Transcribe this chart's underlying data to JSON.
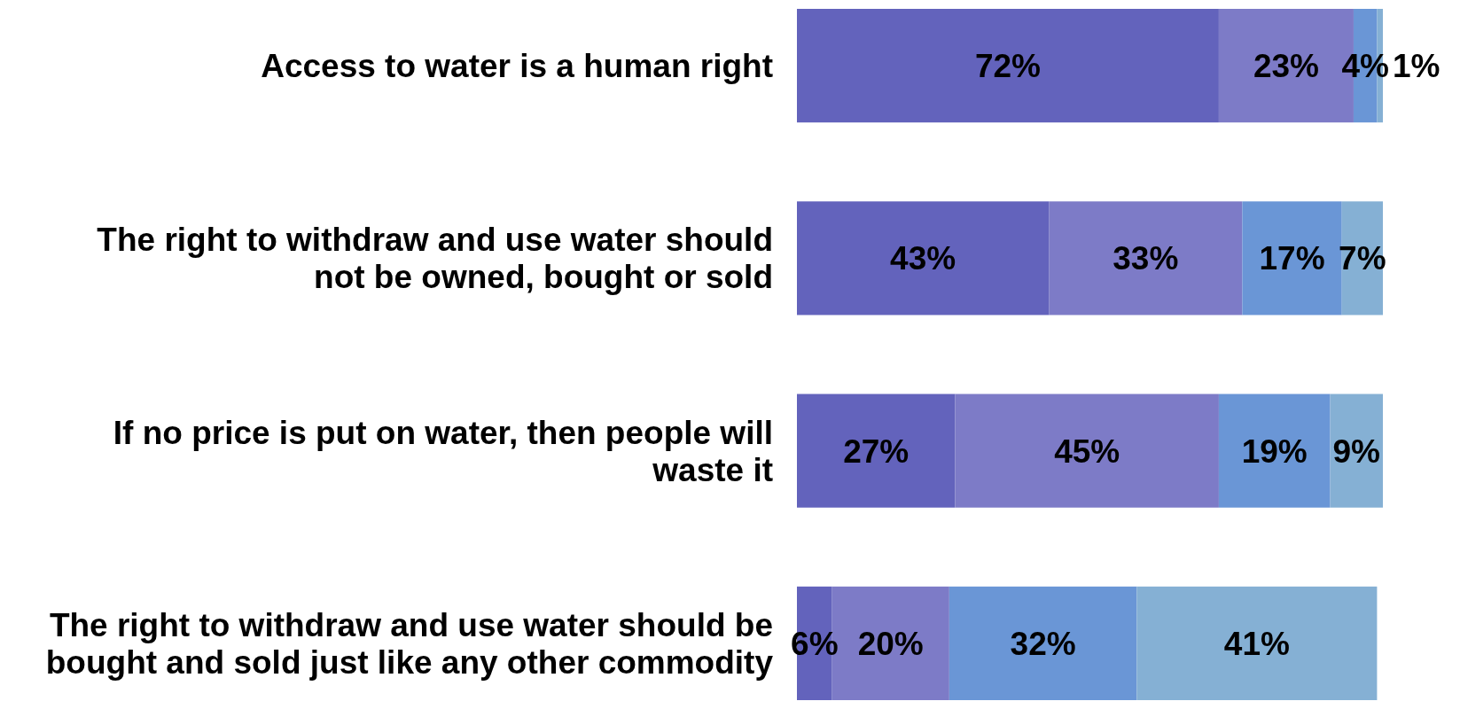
{
  "chart_data": {
    "type": "bar",
    "orientation": "horizontal",
    "stacked": true,
    "categories": [
      "Access to water is a human right",
      "The right to withdraw and use water should not be owned, bought or sold",
      "If no price is put on water, then people will waste it",
      "The right to withdraw and use water should be bought and sold just like any other commodity"
    ],
    "series": [
      {
        "color": "#6363bc",
        "values": [
          72,
          43,
          27,
          6
        ],
        "value_labels": [
          "72%",
          "43%",
          "27%",
          "6%"
        ]
      },
      {
        "color": "#7d7bc7",
        "values": [
          23,
          33,
          45,
          20
        ],
        "value_labels": [
          "23%",
          "33%",
          "45%",
          "20%"
        ]
      },
      {
        "color": "#6a96d6",
        "values": [
          4,
          17,
          19,
          32
        ],
        "value_labels": [
          "4%",
          "17%",
          "19%",
          "32%"
        ]
      },
      {
        "color": "#85b0d4",
        "values": [
          1,
          7,
          9,
          41
        ],
        "value_labels": [
          "1%",
          "7%",
          "9%",
          "41%"
        ]
      }
    ],
    "xlim": [
      0,
      100
    ],
    "tick_labels": "y"
  }
}
